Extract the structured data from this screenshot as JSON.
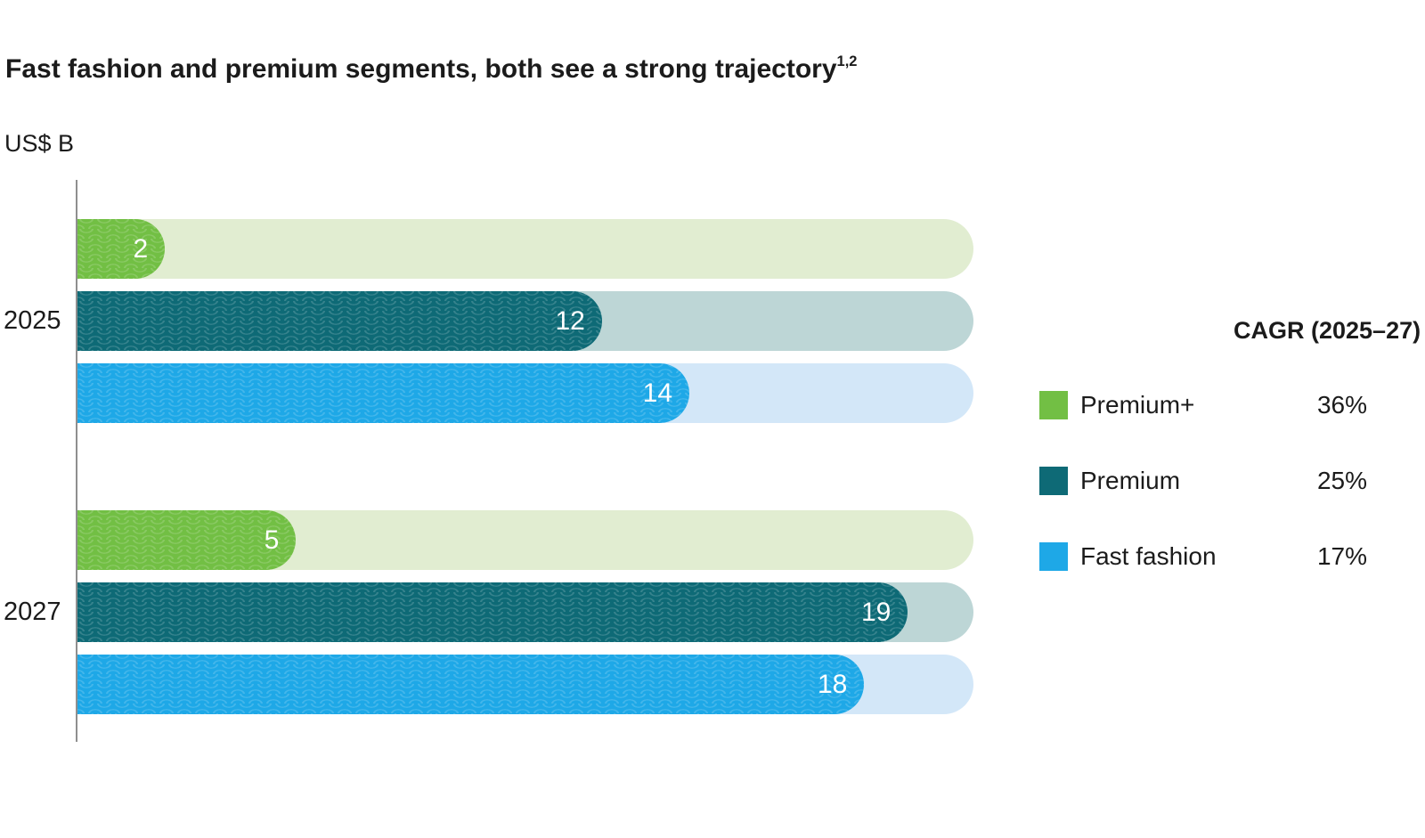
{
  "title": {
    "text": "Fast fashion and premium segments, both see a strong trajectory",
    "footnote_marker": "1,2"
  },
  "unit_label": "US$ B",
  "legend": {
    "header": "CAGR (2025–27)",
    "items": [
      {
        "label": "Premium+",
        "cagr": "36%",
        "color": "#72bf44"
      },
      {
        "label": "Premium",
        "cagr": "25%",
        "color": "#0e6a76"
      },
      {
        "label": "Fast fashion",
        "cagr": "17%",
        "color": "#1ea8e7"
      }
    ]
  },
  "chart_data": {
    "type": "bar",
    "orientation": "horizontal",
    "title": "Fast fashion and premium segments, both see a strong trajectory",
    "unit": "US$ B",
    "categories": [
      "2025",
      "2027"
    ],
    "series": [
      {
        "name": "Premium+",
        "values": [
          2,
          5
        ],
        "color": "#72bf44",
        "track_color": "#e1edd1",
        "cagr_2025_27": "36%"
      },
      {
        "name": "Premium",
        "values": [
          12,
          19
        ],
        "color": "#0e6a76",
        "track_color": "#bdd6d6",
        "cagr_2025_27": "25%"
      },
      {
        "name": "Fast fashion",
        "values": [
          14,
          18
        ],
        "color": "#1ea8e7",
        "track_color": "#d3e7f8",
        "cagr_2025_27": "17%"
      }
    ],
    "xlim": [
      0,
      20.5
    ],
    "value_labels": "inside-end",
    "grid": false,
    "legend_position": "right"
  },
  "colors": {
    "background": "#ffffff",
    "text": "#1b1b1b",
    "axis_line": "#8f8f8f",
    "value_label": "#ffffff"
  }
}
